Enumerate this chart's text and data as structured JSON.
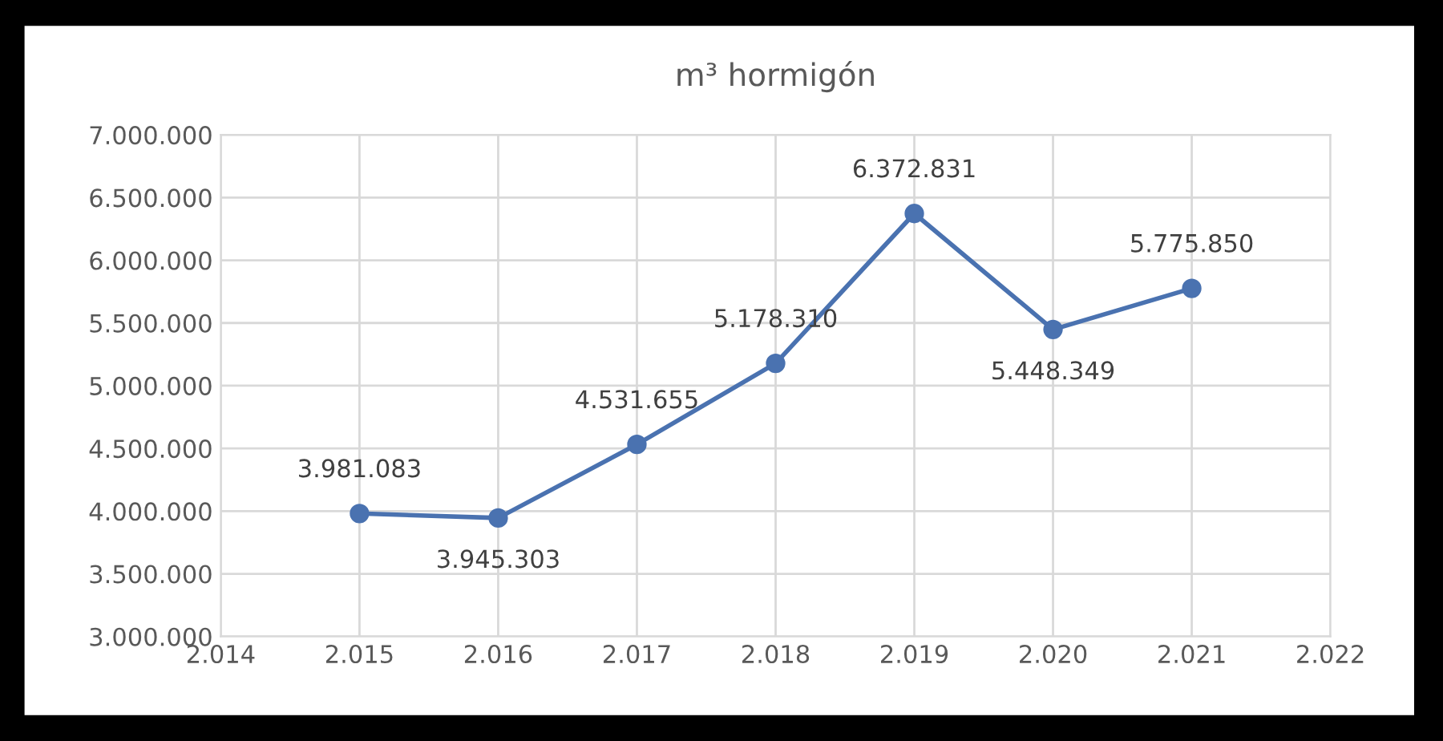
{
  "chart_data": {
    "type": "line",
    "title": "m³ hormigón",
    "x": [
      2015,
      2016,
      2017,
      2018,
      2019,
      2020,
      2021
    ],
    "series": [
      {
        "color": "#4a72b0",
        "values": [
          3981083,
          3945303,
          4531655,
          5178310,
          6372831,
          5448349,
          5775850
        ],
        "value_labels": [
          "3.981.083",
          "3.945.303",
          "4.531.655",
          "5.178.310",
          "6.372.831",
          "5.448.349",
          "5.775.850"
        ]
      }
    ],
    "xlim": [
      2014,
      2022
    ],
    "xticks": [
      {
        "value": 2014,
        "label": "2.014"
      },
      {
        "value": 2015,
        "label": "2.015"
      },
      {
        "value": 2016,
        "label": "2.016"
      },
      {
        "value": 2017,
        "label": "2.017"
      },
      {
        "value": 2018,
        "label": "2.018"
      },
      {
        "value": 2019,
        "label": "2.019"
      },
      {
        "value": 2020,
        "label": "2.020"
      },
      {
        "value": 2021,
        "label": "2.021"
      },
      {
        "value": 2022,
        "label": "2.022"
      }
    ],
    "ylim": [
      3000000,
      7000000
    ],
    "yticks": [
      {
        "value": 3000000,
        "label": "3.000.000"
      },
      {
        "value": 3500000,
        "label": "3.500.000"
      },
      {
        "value": 4000000,
        "label": "4.000.000"
      },
      {
        "value": 4500000,
        "label": "4.500.000"
      },
      {
        "value": 5000000,
        "label": "5.000.000"
      },
      {
        "value": 5500000,
        "label": "5.500.000"
      },
      {
        "value": 6000000,
        "label": "6.000.000"
      },
      {
        "value": 6500000,
        "label": "6.500.000"
      },
      {
        "value": 7000000,
        "label": "7.000.000"
      }
    ],
    "grid": true,
    "legend": false,
    "marker": "circle",
    "line_style": "solid"
  }
}
